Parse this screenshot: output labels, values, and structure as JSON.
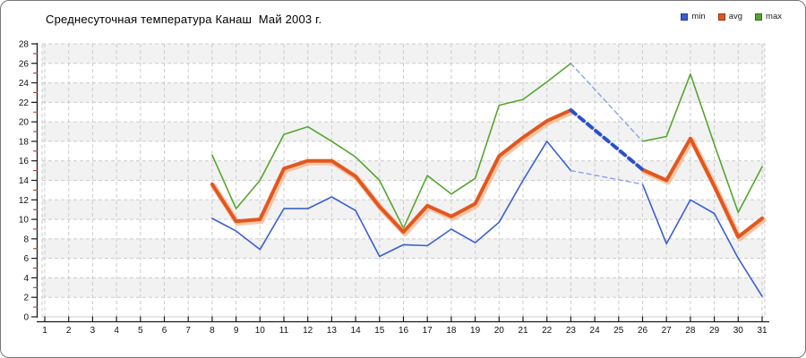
{
  "window": {
    "background": "#ffffff",
    "border_color": "#777777"
  },
  "chart_data": {
    "type": "line",
    "title": "Среднесуточная температура Канаш  Май 2003 г.",
    "xlabel": "",
    "ylabel": "",
    "xlim": [
      1,
      31
    ],
    "ylim": [
      0,
      28
    ],
    "xticks": [
      1,
      2,
      3,
      4,
      5,
      6,
      7,
      8,
      9,
      10,
      11,
      12,
      13,
      14,
      15,
      16,
      17,
      18,
      19,
      20,
      21,
      22,
      23,
      24,
      25,
      26,
      27,
      28,
      29,
      30,
      31
    ],
    "yticks": [
      0,
      2,
      4,
      6,
      8,
      10,
      12,
      14,
      16,
      18,
      20,
      22,
      24,
      26,
      28
    ],
    "yticks_minor": [
      1,
      3,
      5,
      7,
      9,
      11,
      13,
      15,
      17,
      19,
      21,
      23,
      25,
      27
    ],
    "grid": "dashed",
    "legend_position": "top-right",
    "band_color": "#f2f2f2",
    "grid_color": "#cccccc",
    "axis_color": "#1a1a1a",
    "minor_tick_color": "#b03a2e",
    "days": [
      1,
      2,
      3,
      4,
      5,
      6,
      7,
      8,
      9,
      10,
      11,
      12,
      13,
      14,
      15,
      16,
      17,
      18,
      19,
      20,
      21,
      22,
      23,
      24,
      25,
      26,
      27,
      28,
      29,
      30,
      31
    ],
    "missing_days": [
      1,
      2,
      3,
      4,
      5,
      6,
      7,
      24,
      25
    ],
    "interpolated_gap": {
      "from_day": 23,
      "to_day": 26,
      "style": "dashed"
    },
    "series": [
      {
        "name": "min",
        "color": "#3a5fd0",
        "width": 1.6,
        "gap_color": "#8aa2e8",
        "gap_width": 1.4,
        "values": [
          null,
          null,
          null,
          null,
          null,
          null,
          null,
          10.1,
          8.8,
          6.9,
          11.1,
          11.1,
          12.3,
          10.9,
          6.2,
          7.4,
          7.3,
          9.0,
          7.6,
          9.7,
          14.0,
          18.0,
          15.0,
          null,
          null,
          13.6,
          7.5,
          12.0,
          10.6,
          6.0,
          2.1
        ]
      },
      {
        "name": "avg",
        "color": "#e2571f",
        "width": 4,
        "halo_color": "#f6b991",
        "gap_color": "#2b50cc",
        "gap_width": 4,
        "values": [
          null,
          null,
          null,
          null,
          null,
          null,
          null,
          13.6,
          9.8,
          10.0,
          15.2,
          16.0,
          16.0,
          14.4,
          11.3,
          8.7,
          11.4,
          10.3,
          11.6,
          16.5,
          18.4,
          20.1,
          21.2,
          null,
          null,
          15.1,
          14.0,
          18.3,
          13.4,
          8.2,
          10.1
        ]
      },
      {
        "name": "max",
        "color": "#55a62d",
        "width": 1.6,
        "gap_color": "#8aa2e8",
        "gap_width": 1.4,
        "values": [
          null,
          null,
          null,
          null,
          null,
          null,
          null,
          16.6,
          11.1,
          14.0,
          18.7,
          19.5,
          18.0,
          16.4,
          14.0,
          9.1,
          14.5,
          12.6,
          14.2,
          21.7,
          22.3,
          24.1,
          26.0,
          null,
          null,
          18.0,
          18.5,
          24.9,
          17.7,
          10.7,
          15.4
        ]
      }
    ]
  }
}
